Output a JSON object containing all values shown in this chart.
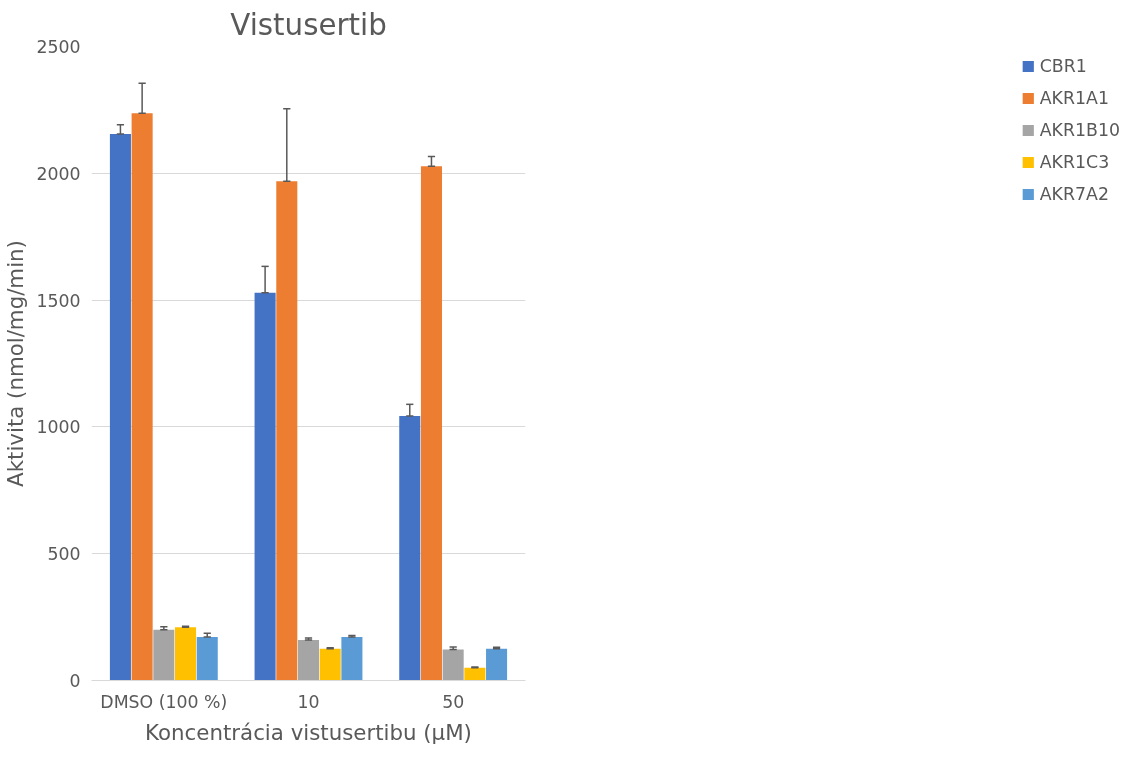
{
  "chart_data": {
    "type": "bar",
    "title": "Vistusertib",
    "xlabel": "Koncentrácia vistusertibu (μM)",
    "ylabel": "Aktivita (nmol/mg/min)",
    "categories": [
      "DMSO (100 %)",
      "10",
      "50"
    ],
    "series": [
      {
        "name": "CBR1",
        "color": "#4472c4",
        "values": [
          2155,
          1529,
          1043
        ],
        "errors": [
          [
            2155,
            2191
          ],
          [
            1529,
            1633
          ],
          [
            1043,
            1089
          ]
        ]
      },
      {
        "name": "AKR1A1",
        "color": "#ed7d31",
        "values": [
          2237,
          1969,
          2028
        ],
        "errors": [
          [
            2237,
            2355
          ],
          [
            1969,
            2255
          ],
          [
            2028,
            2066
          ]
        ]
      },
      {
        "name": "AKR1B10",
        "color": "#a5a5a5",
        "values": [
          200,
          160,
          122
        ],
        "errors": [
          [
            200,
            212
          ],
          [
            160,
            168
          ],
          [
            122,
            132
          ]
        ]
      },
      {
        "name": "AKR1C3",
        "color": "#ffc000",
        "values": [
          210,
          125,
          50
        ],
        "errors": [
          [
            210,
            214
          ],
          [
            125,
            129
          ],
          [
            50,
            53
          ]
        ]
      },
      {
        "name": "AKR7A2",
        "color": "#5b9bd5",
        "values": [
          172,
          172,
          125
        ],
        "errors": [
          [
            172,
            186
          ],
          [
            172,
            177
          ],
          [
            125,
            131
          ]
        ]
      }
    ],
    "ylim": [
      0,
      2500
    ],
    "yticks": [
      0,
      500,
      1000,
      1500,
      2000,
      2500
    ],
    "grid": "y",
    "legend": "right"
  }
}
